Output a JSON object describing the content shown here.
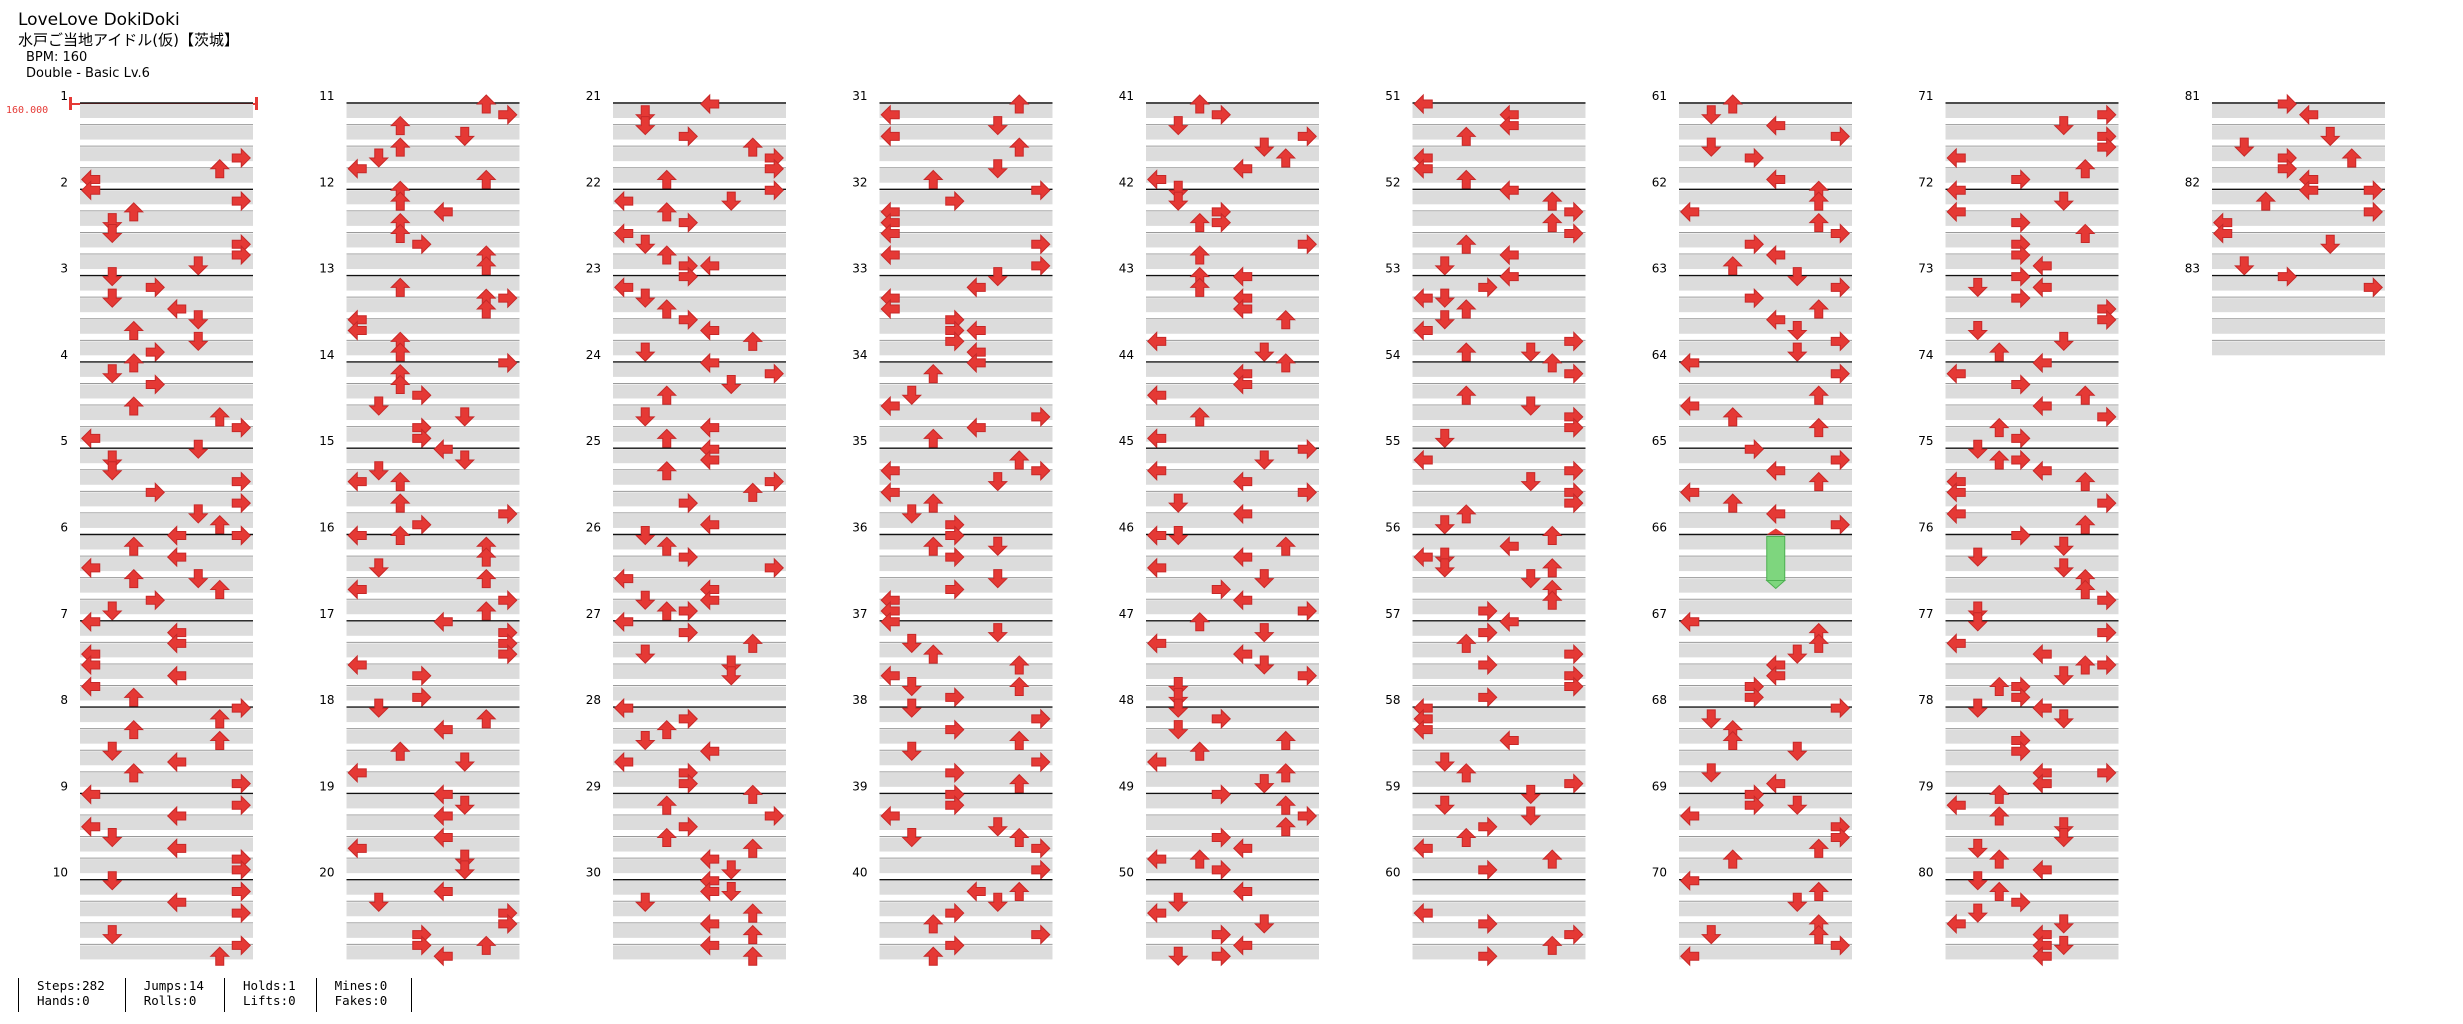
{
  "song": {
    "title": "LoveLove DokiDoki",
    "subtitle": "水戸ご当地アイドル(仮)【茨城】",
    "bpm_line": "BPM: 160",
    "chart_info": "Double - Basic  Lv.6"
  },
  "bpm_marker": {
    "label": "160.000",
    "color": "#e53935"
  },
  "arrow_color": "#e53935",
  "hold_color": "#7ed67e",
  "measures": {
    "count": 83,
    "per_column": 10,
    "columns": 9,
    "hold_measure": 66
  },
  "stats": [
    {
      "top": "Steps:282",
      "bottom": "Hands:0"
    },
    {
      "top": "Jumps:14",
      "bottom": "Rolls:0"
    },
    {
      "top": "Holds:1",
      "bottom": "Lifts:0"
    },
    {
      "top": "Mines:0",
      "bottom": "Fakes:0"
    }
  ]
}
